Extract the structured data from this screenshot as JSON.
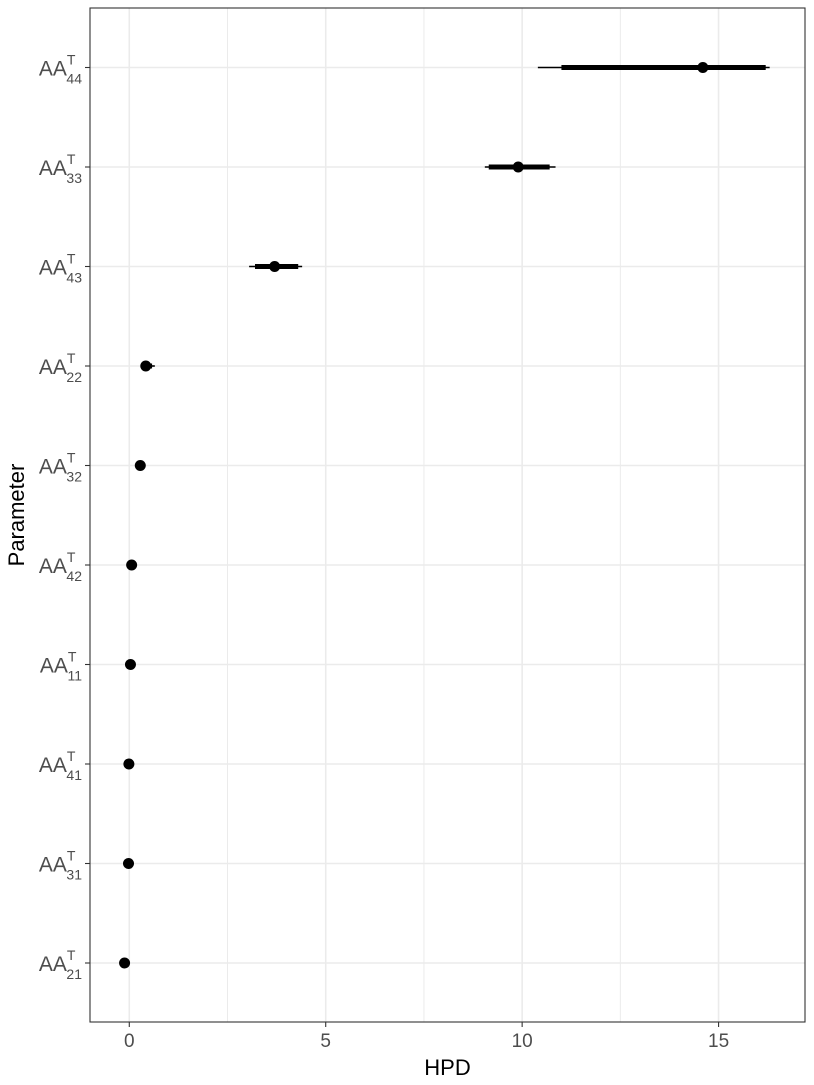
{
  "chart_data": {
    "type": "pointrange",
    "xlabel": "HPD",
    "ylabel": "Parameter",
    "xlim": [
      -1.0,
      17.2
    ],
    "x_ticks": [
      0,
      5,
      10,
      15
    ],
    "x_minor_ticks": [
      2.5,
      7.5,
      12.5
    ],
    "grid": true,
    "y_label_prefix": "AA",
    "y_label_superscript": "T",
    "rows": [
      {
        "label": "AA^T_44",
        "sub": "44",
        "point": 14.6,
        "inner": [
          11.0,
          16.2
        ],
        "outer": [
          10.4,
          16.3
        ]
      },
      {
        "label": "AA^T_33",
        "sub": "33",
        "point": 9.9,
        "inner": [
          9.15,
          10.7
        ],
        "outer": [
          9.05,
          10.85
        ]
      },
      {
        "label": "AA^T_43",
        "sub": "43",
        "point": 3.7,
        "inner": [
          3.2,
          4.3
        ],
        "outer": [
          3.05,
          4.4
        ]
      },
      {
        "label": "AA^T_22",
        "sub": "22",
        "point": 0.42,
        "inner": [
          0.33,
          0.58
        ],
        "outer": [
          0.3,
          0.65
        ]
      },
      {
        "label": "AA^T_32",
        "sub": "32",
        "point": 0.28,
        "inner": [
          0.24,
          0.32
        ],
        "outer": [
          0.22,
          0.34
        ]
      },
      {
        "label": "AA^T_42",
        "sub": "42",
        "point": 0.06,
        "inner": [
          0.04,
          0.08
        ],
        "outer": [
          0.03,
          0.09
        ]
      },
      {
        "label": "AA^T_11",
        "sub": "11",
        "point": 0.03,
        "inner": [
          0.01,
          0.05
        ],
        "outer": [
          0.0,
          0.06
        ]
      },
      {
        "label": "AA^T_41",
        "sub": "41",
        "point": -0.01,
        "inner": [
          -0.03,
          0.01
        ],
        "outer": [
          -0.04,
          0.02
        ]
      },
      {
        "label": "AA^T_31",
        "sub": "31",
        "point": -0.02,
        "inner": [
          -0.04,
          0.0
        ],
        "outer": [
          -0.05,
          0.01
        ]
      },
      {
        "label": "AA^T_21",
        "sub": "21",
        "point": -0.12,
        "inner": [
          -0.15,
          -0.09
        ],
        "outer": [
          -0.17,
          -0.07
        ]
      }
    ]
  }
}
